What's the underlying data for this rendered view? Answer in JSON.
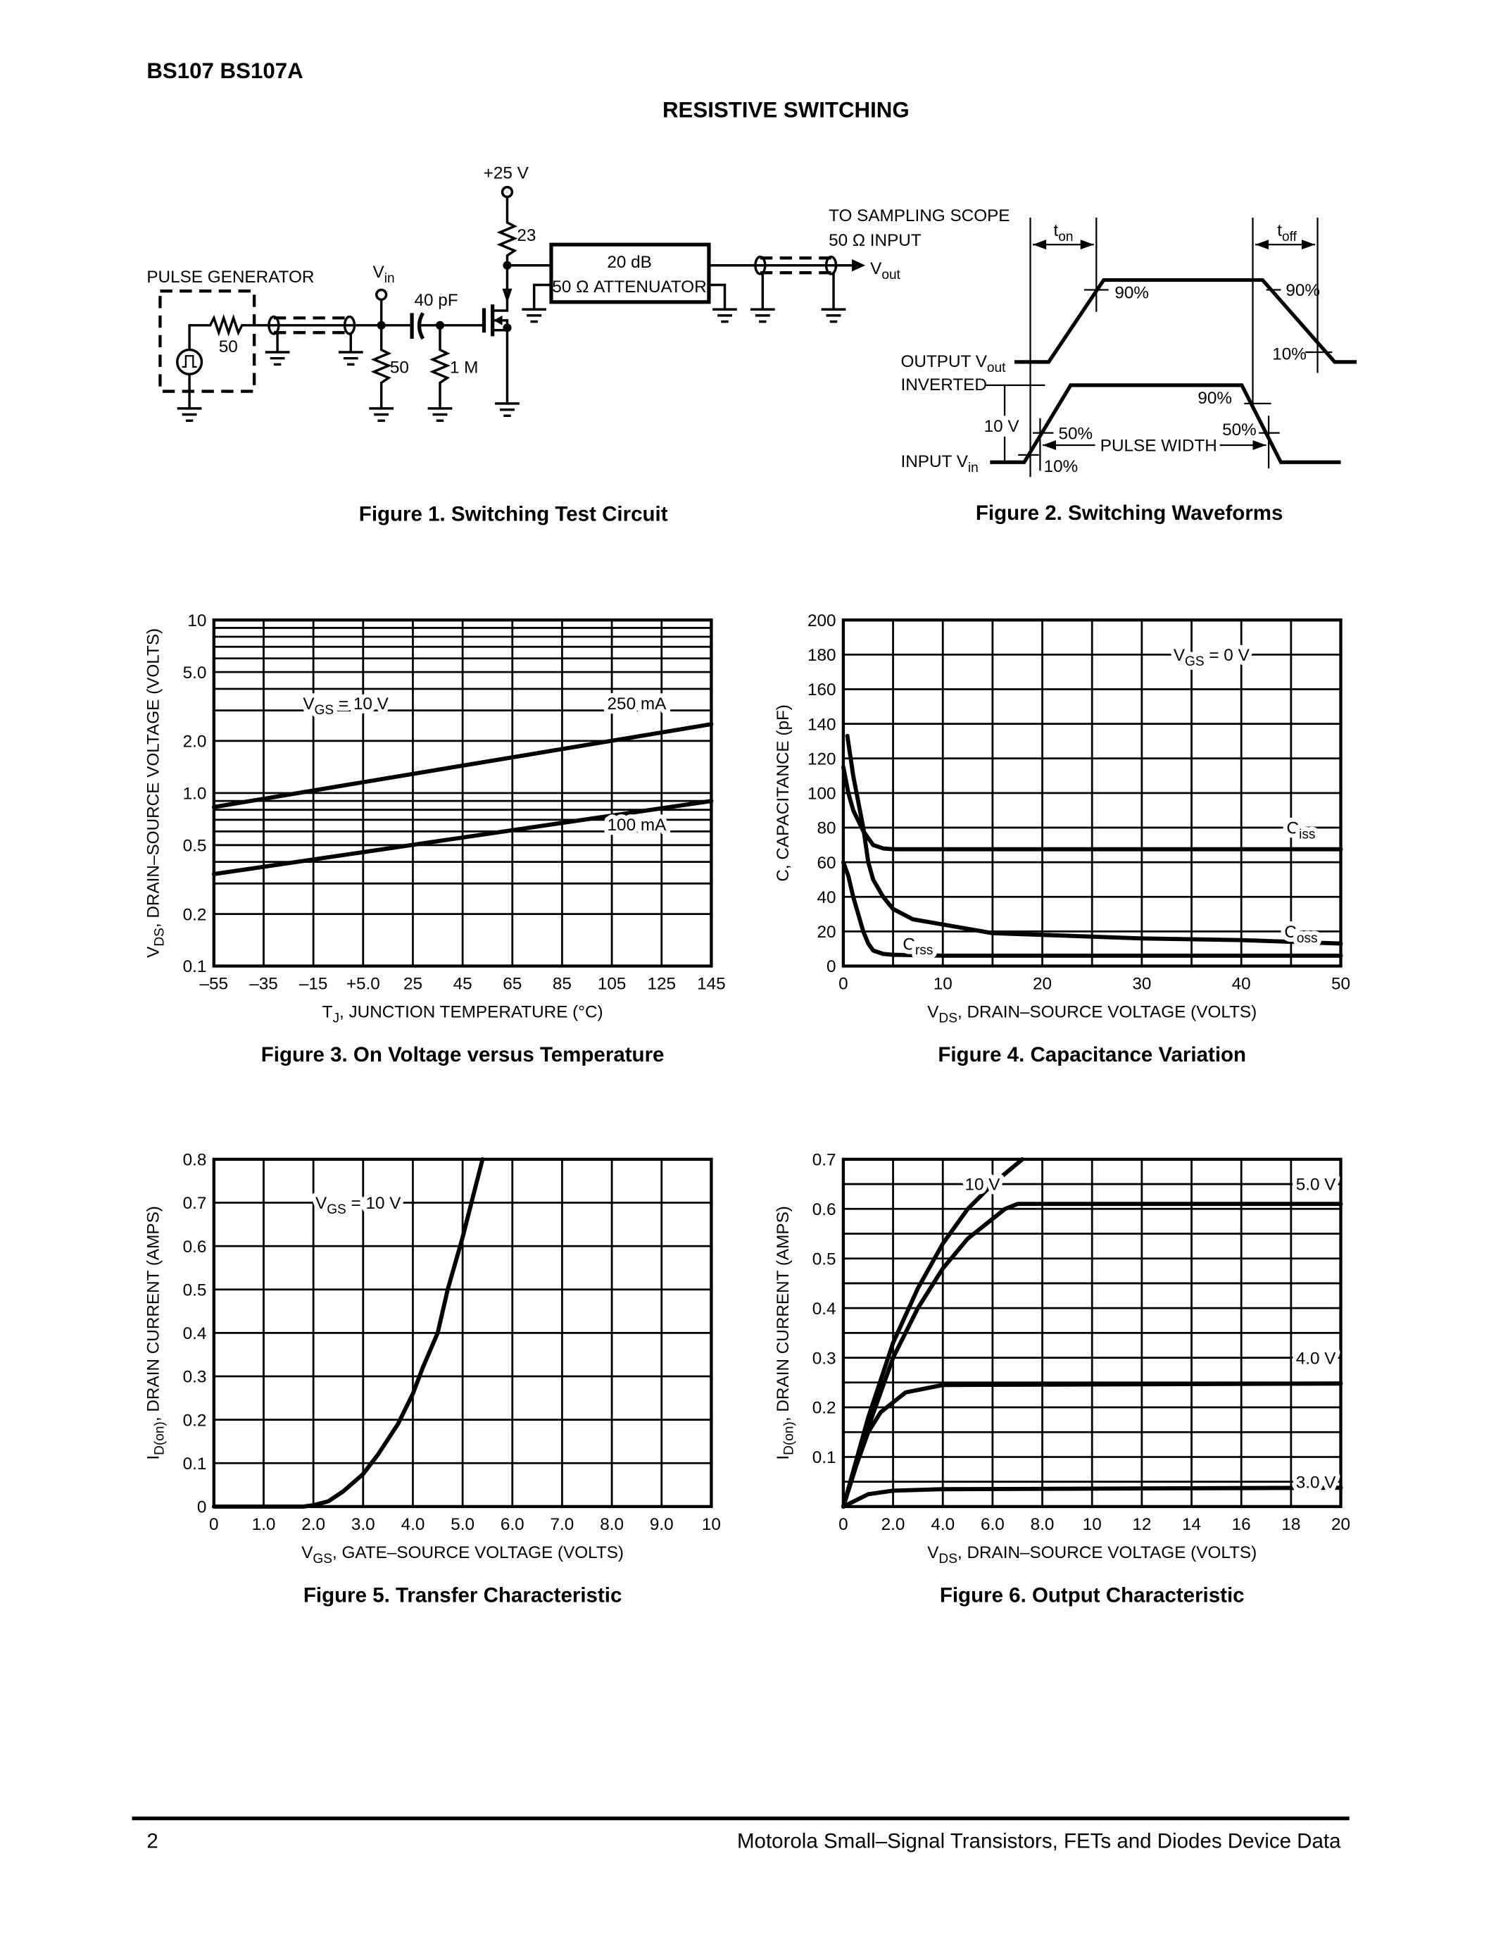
{
  "header": {
    "part_numbers": "BS107 BS107A",
    "section_title": "RESISTIVE SWITCHING"
  },
  "figure1": {
    "caption": "Figure 1. Switching Test Circuit",
    "supply": "+25 V",
    "drain_resistor": "23",
    "attenuator_line1": "20 dB",
    "attenuator_line2": "50 Ω ATTENUATOR",
    "pulse_generator": "PULSE GENERATOR",
    "gen_resistor": "50",
    "vin_main": "V",
    "vin_sub": "in",
    "capacitor": "40 pF",
    "input_resistor": "50",
    "gate_resistor": "1 M",
    "scope_line1": "TO SAMPLING SCOPE",
    "scope_line2": "50 Ω INPUT",
    "vout_main": "V",
    "vout_sub": "out"
  },
  "figure2": {
    "caption": "Figure 2. Switching Waveforms",
    "ton_main": "t",
    "ton_sub": "on",
    "toff_main": "t",
    "toff_sub": "off",
    "out_pct_90_rise": "90%",
    "out_pct_90_fall": "90%",
    "out_pct_10_fall": "10%",
    "output_label_main": "OUTPUT V",
    "output_label_sub": "out",
    "inverted": "INVERTED",
    "amplitude": "10 V",
    "in_pct_50_rise": "50%",
    "in_pct_10_rise": "10%",
    "in_pct_90_fall": "90%",
    "in_pct_50_fall": "50%",
    "pulse_width": "PULSE WIDTH",
    "input_label_main": "INPUT V",
    "input_label_sub": "in"
  },
  "chart_data": [
    {
      "type": "line",
      "caption": "Figure 3. On Voltage versus Temperature",
      "xlabel": {
        "main": "T",
        "sub": "J",
        "rest": ", JUNCTION TEMPERATURE (°C)"
      },
      "ylabel": {
        "main": "V",
        "sub": "DS",
        "rest": ", DRAIN–SOURCE VOLTAGE (VOLTS)"
      },
      "xlim": [
        -55,
        145
      ],
      "ylim": [
        0.1,
        10
      ],
      "yscale": "log",
      "grid": true,
      "xticks": [
        -55,
        -35,
        -15,
        5,
        25,
        45,
        65,
        85,
        105,
        125,
        145
      ],
      "xtick_labels": [
        "–55",
        "–35",
        "–15",
        "+5.0",
        "25",
        "45",
        "65",
        "85",
        "105",
        "125",
        "145"
      ],
      "yticks": [
        10,
        5,
        2,
        1,
        0.5,
        0.2,
        0.1
      ],
      "ytick_labels": [
        "10",
        "5.0",
        "2.0",
        "1.0",
        "0.5",
        "0.2",
        "0.1"
      ],
      "annotations": [
        {
          "main": "V",
          "sub": "GS",
          "rest": " = 10 V"
        }
      ],
      "series": [
        {
          "name": "250 mA",
          "x": [
            -55,
            145
          ],
          "y": [
            0.83,
            2.5
          ]
        },
        {
          "name": "100 mA",
          "x": [
            -55,
            145
          ],
          "y": [
            0.34,
            0.9
          ]
        }
      ]
    },
    {
      "type": "line",
      "caption": "Figure 4. Capacitance Variation",
      "xlabel": {
        "main": "V",
        "sub": "DS",
        "rest": ", DRAIN–SOURCE VOLTAGE (VOLTS)"
      },
      "ylabel": {
        "main": "",
        "sub": "",
        "rest": "C, CAPACITANCE (pF)"
      },
      "xlim": [
        0,
        50
      ],
      "ylim": [
        0,
        200
      ],
      "grid": true,
      "xticks": [
        0,
        10,
        20,
        30,
        40,
        50
      ],
      "xtick_labels": [
        "0",
        "10",
        "20",
        "30",
        "40",
        "50"
      ],
      "yticks": [
        0,
        20,
        40,
        60,
        80,
        100,
        120,
        140,
        160,
        180,
        200
      ],
      "ytick_labels": [
        "0",
        "20",
        "40",
        "60",
        "80",
        "100",
        "120",
        "140",
        "160",
        "180",
        "200"
      ],
      "annotations": [
        {
          "main": "V",
          "sub": "GS",
          "rest": " = 0 V"
        }
      ],
      "series": [
        {
          "name": "Ciss",
          "label_main": "C",
          "label_sub": "iss",
          "x": [
            0,
            0.5,
            1,
            2,
            3,
            4,
            5,
            50
          ],
          "y": [
            115,
            100,
            90,
            78,
            70,
            68,
            67.5,
            67.5
          ]
        },
        {
          "name": "Coss",
          "label_main": "C",
          "label_sub": "oss",
          "x": [
            0.4,
            1,
            2,
            2.5,
            3,
            4,
            5,
            7,
            10,
            15,
            20,
            30,
            40,
            50
          ],
          "y": [
            133,
            110,
            80,
            60,
            50,
            40,
            33,
            27,
            24,
            19,
            18,
            16,
            15,
            13
          ]
        },
        {
          "name": "Crss",
          "label_main": "C",
          "label_sub": "rss",
          "x": [
            0,
            0.5,
            1,
            1.5,
            2,
            2.5,
            3,
            4,
            5,
            10,
            50
          ],
          "y": [
            60,
            52,
            40,
            30,
            20,
            13,
            9,
            7,
            6.5,
            6,
            6
          ]
        }
      ]
    },
    {
      "type": "line",
      "caption": "Figure 5. Transfer Characteristic",
      "xlabel": {
        "main": "V",
        "sub": "GS",
        "rest": ", GATE–SOURCE VOLTAGE (VOLTS)"
      },
      "ylabel": {
        "main": "I",
        "sub": "D(on)",
        "rest": ", DRAIN CURRENT (AMPS)"
      },
      "xlim": [
        0,
        10
      ],
      "ylim": [
        0,
        0.8
      ],
      "grid": true,
      "xticks": [
        0,
        1,
        2,
        3,
        4,
        5,
        6,
        7,
        8,
        9,
        10
      ],
      "xtick_labels": [
        "0",
        "1.0",
        "2.0",
        "3.0",
        "4.0",
        "5.0",
        "6.0",
        "7.0",
        "8.0",
        "9.0",
        "10"
      ],
      "yticks": [
        0,
        0.1,
        0.2,
        0.3,
        0.4,
        0.5,
        0.6,
        0.7,
        0.8
      ],
      "ytick_labels": [
        "0",
        "0.1",
        "0.2",
        "0.3",
        "0.4",
        "0.5",
        "0.6",
        "0.7",
        "0.8"
      ],
      "annotations": [
        {
          "main": "V",
          "sub": "GS",
          "rest": " = 10 V"
        }
      ],
      "series": [
        {
          "x": [
            0,
            1.8,
            2,
            2.3,
            2.6,
            3,
            3.3,
            3.7,
            4,
            4.2,
            4.5,
            4.7,
            5,
            5.2,
            5.4
          ],
          "y": [
            0,
            0,
            0.003,
            0.012,
            0.035,
            0.075,
            0.12,
            0.19,
            0.26,
            0.32,
            0.4,
            0.5,
            0.62,
            0.71,
            0.8
          ]
        }
      ]
    },
    {
      "type": "line",
      "caption": "Figure 6. Output Characteristic",
      "xlabel": {
        "main": "V",
        "sub": "DS",
        "rest": ", DRAIN–SOURCE VOLTAGE (VOLTS)"
      },
      "ylabel": {
        "main": "I",
        "sub": "D(on)",
        "rest": ", DRAIN CURRENT (AMPS)"
      },
      "xlim": [
        0,
        20
      ],
      "ylim": [
        0,
        0.7
      ],
      "grid": true,
      "xticks": [
        0,
        2,
        4,
        6,
        8,
        10,
        12,
        14,
        16,
        18,
        20
      ],
      "xtick_labels": [
        "0",
        "2.0",
        "4.0",
        "6.0",
        "8.0",
        "10",
        "12",
        "14",
        "16",
        "18",
        "20"
      ],
      "yticks": [
        0.1,
        0.2,
        0.3,
        0.4,
        0.5,
        0.6,
        0.7
      ],
      "ytick_labels": [
        "0.1",
        "0.2",
        "0.3",
        "0.4",
        "0.5",
        "0.6",
        "0.7"
      ],
      "annotations": [],
      "series": [
        {
          "name": "10 V",
          "x": [
            0,
            1,
            2,
            3,
            4,
            5,
            6,
            7.2
          ],
          "y": [
            0,
            0.18,
            0.33,
            0.44,
            0.53,
            0.6,
            0.65,
            0.7
          ]
        },
        {
          "name": "5.0 V",
          "x": [
            0,
            1,
            2,
            3,
            4,
            5,
            6,
            6.5,
            7,
            20
          ],
          "y": [
            0,
            0.16,
            0.3,
            0.4,
            0.48,
            0.54,
            0.58,
            0.6,
            0.61,
            0.61
          ]
        },
        {
          "name": "4.0 V",
          "x": [
            0,
            0.5,
            1,
            1.5,
            2,
            2.5,
            4,
            20
          ],
          "y": [
            0,
            0.08,
            0.15,
            0.19,
            0.21,
            0.23,
            0.245,
            0.248
          ]
        },
        {
          "name": "3.0 V",
          "x": [
            0,
            1,
            2,
            4,
            20
          ],
          "y": [
            0,
            0.025,
            0.032,
            0.035,
            0.038
          ]
        }
      ]
    }
  ],
  "footer": {
    "page_number": "2",
    "publication": "Motorola Small–Signal Transistors, FETs and Diodes Device Data"
  }
}
